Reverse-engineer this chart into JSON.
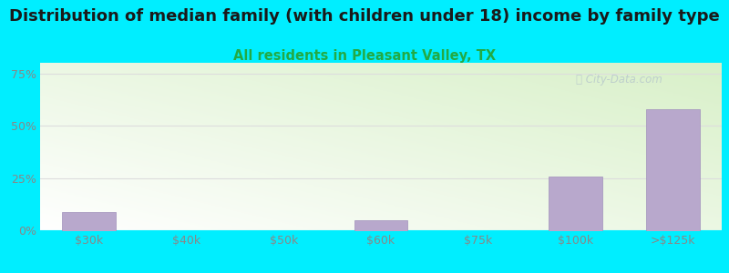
{
  "title": "Distribution of median family (with children under 18) income by family type",
  "subtitle": "All residents in Pleasant Valley, TX",
  "categories": [
    "$30k",
    "$40k",
    "$50k",
    "$60k",
    "$75k",
    "$100k",
    ">$125k"
  ],
  "values": [
    9.0,
    0.0,
    0.0,
    5.0,
    0.0,
    26.0,
    58.0
  ],
  "bar_color": "#b8a8cc",
  "bar_edge_color": "#a090bb",
  "title_color": "#1a1a1a",
  "subtitle_color": "#22aa44",
  "background_cyan": "#00eeff",
  "chart_bg_green": "#d8f0c8",
  "chart_bg_white": "#ffffff",
  "yticks": [
    0,
    25,
    50,
    75
  ],
  "ylim": [
    0,
    80
  ],
  "title_fontsize": 13,
  "subtitle_fontsize": 10.5,
  "watermark_text": "City-Data.com",
  "watermark_color": "#bbcccc",
  "grid_color": "#dddddd",
  "tick_label_color": "#888888"
}
